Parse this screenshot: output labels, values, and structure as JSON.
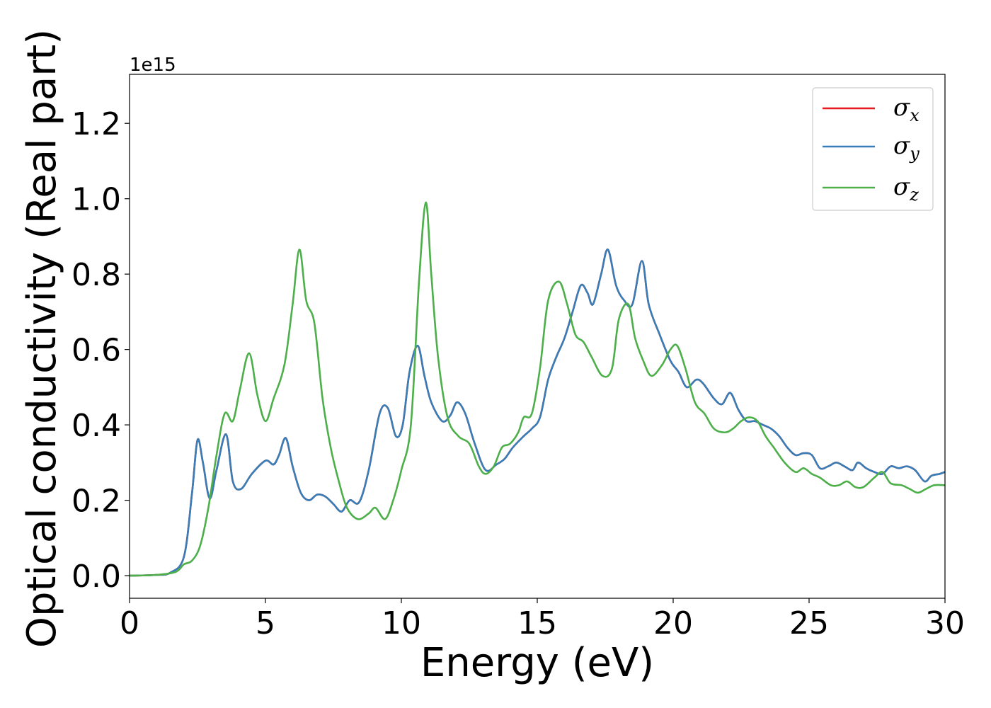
{
  "chart_data": {
    "type": "line",
    "title": "",
    "xlabel": "Energy (eV)",
    "ylabel": "Optical conductivity (Real part)",
    "y_offset_text": "1e15",
    "xlim": [
      0,
      30
    ],
    "ylim": [
      -0.06,
      1.33
    ],
    "xticks": [
      0,
      5,
      10,
      15,
      20,
      25,
      30
    ],
    "xtick_labels": [
      "0",
      "5",
      "10",
      "15",
      "20",
      "25",
      "30"
    ],
    "yticks": [
      0.0,
      0.2,
      0.4,
      0.6,
      0.8,
      1.0,
      1.2
    ],
    "ytick_labels": [
      "0.0",
      "0.2",
      "0.4",
      "0.6",
      "0.8",
      "1.0",
      "1.2"
    ],
    "grid": false,
    "legend_position": "top-right",
    "series": [
      {
        "name": "σx",
        "symbol": "σ",
        "subscript": "x",
        "color": "#e41a1c",
        "x": [
          0,
          1,
          1.5,
          2,
          2.3,
          2.5,
          2.7,
          2.95,
          3.2,
          3.55,
          3.8,
          4.1,
          4.5,
          5.0,
          5.3,
          5.5,
          5.75,
          6.0,
          6.3,
          6.6,
          6.9,
          7.2,
          7.5,
          7.8,
          8.1,
          8.45,
          8.8,
          9.2,
          9.5,
          9.8,
          10.05,
          10.3,
          10.6,
          10.85,
          11.1,
          11.5,
          11.8,
          12.05,
          12.35,
          12.7,
          13.1,
          13.5,
          13.8,
          14.1,
          14.5,
          14.8,
          15.1,
          15.4,
          15.7,
          16.0,
          16.3,
          16.6,
          16.85,
          17.05,
          17.35,
          17.6,
          17.9,
          18.2,
          18.5,
          18.85,
          19.1,
          19.5,
          19.9,
          20.2,
          20.5,
          20.85,
          21.1,
          21.5,
          21.8,
          22.1,
          22.4,
          22.7,
          23.0,
          23.3,
          23.6,
          23.9,
          24.2,
          24.5,
          24.8,
          25.1,
          25.4,
          25.7,
          26.0,
          26.3,
          26.6,
          26.8,
          27.1,
          27.4,
          27.7,
          28.0,
          28.3,
          28.6,
          28.9,
          29.25,
          29.5,
          29.8,
          30
        ],
        "values": [
          0.0,
          0.002,
          0.008,
          0.05,
          0.22,
          0.36,
          0.3,
          0.205,
          0.28,
          0.375,
          0.25,
          0.23,
          0.27,
          0.305,
          0.295,
          0.32,
          0.365,
          0.29,
          0.22,
          0.2,
          0.215,
          0.21,
          0.19,
          0.17,
          0.2,
          0.195,
          0.28,
          0.43,
          0.445,
          0.37,
          0.4,
          0.54,
          0.61,
          0.53,
          0.46,
          0.41,
          0.425,
          0.46,
          0.43,
          0.35,
          0.28,
          0.295,
          0.31,
          0.34,
          0.37,
          0.39,
          0.42,
          0.52,
          0.58,
          0.63,
          0.7,
          0.77,
          0.75,
          0.72,
          0.8,
          0.865,
          0.77,
          0.73,
          0.72,
          0.835,
          0.72,
          0.64,
          0.57,
          0.54,
          0.5,
          0.52,
          0.51,
          0.47,
          0.455,
          0.485,
          0.44,
          0.41,
          0.41,
          0.4,
          0.39,
          0.37,
          0.34,
          0.32,
          0.325,
          0.32,
          0.285,
          0.29,
          0.3,
          0.29,
          0.28,
          0.3,
          0.285,
          0.275,
          0.27,
          0.29,
          0.285,
          0.29,
          0.28,
          0.25,
          0.265,
          0.27,
          0.275
        ]
      },
      {
        "name": "σy",
        "symbol": "σ",
        "subscript": "y",
        "color": "#377eb8",
        "x": [
          0,
          1,
          1.5,
          2,
          2.3,
          2.5,
          2.7,
          2.95,
          3.2,
          3.55,
          3.8,
          4.1,
          4.5,
          5.0,
          5.3,
          5.5,
          5.75,
          6.0,
          6.3,
          6.6,
          6.9,
          7.2,
          7.5,
          7.8,
          8.1,
          8.45,
          8.8,
          9.2,
          9.5,
          9.8,
          10.05,
          10.3,
          10.6,
          10.85,
          11.1,
          11.5,
          11.8,
          12.05,
          12.35,
          12.7,
          13.1,
          13.5,
          13.8,
          14.1,
          14.5,
          14.8,
          15.1,
          15.4,
          15.7,
          16.0,
          16.3,
          16.6,
          16.85,
          17.05,
          17.35,
          17.6,
          17.9,
          18.2,
          18.5,
          18.85,
          19.1,
          19.5,
          19.9,
          20.2,
          20.5,
          20.85,
          21.1,
          21.5,
          21.8,
          22.1,
          22.4,
          22.7,
          23.0,
          23.3,
          23.6,
          23.9,
          24.2,
          24.5,
          24.8,
          25.1,
          25.4,
          25.7,
          26.0,
          26.3,
          26.6,
          26.8,
          27.1,
          27.4,
          27.7,
          28.0,
          28.3,
          28.6,
          28.9,
          29.25,
          29.5,
          29.8,
          30
        ],
        "values": [
          0.0,
          0.002,
          0.008,
          0.05,
          0.22,
          0.36,
          0.3,
          0.205,
          0.28,
          0.375,
          0.25,
          0.23,
          0.27,
          0.305,
          0.295,
          0.32,
          0.365,
          0.29,
          0.22,
          0.2,
          0.215,
          0.21,
          0.19,
          0.17,
          0.2,
          0.195,
          0.28,
          0.43,
          0.445,
          0.37,
          0.4,
          0.54,
          0.61,
          0.53,
          0.46,
          0.41,
          0.425,
          0.46,
          0.43,
          0.35,
          0.28,
          0.295,
          0.31,
          0.34,
          0.37,
          0.39,
          0.42,
          0.52,
          0.58,
          0.63,
          0.7,
          0.77,
          0.75,
          0.72,
          0.8,
          0.865,
          0.77,
          0.73,
          0.72,
          0.835,
          0.72,
          0.64,
          0.57,
          0.54,
          0.5,
          0.52,
          0.51,
          0.47,
          0.455,
          0.485,
          0.44,
          0.41,
          0.41,
          0.4,
          0.39,
          0.37,
          0.34,
          0.32,
          0.325,
          0.32,
          0.285,
          0.29,
          0.3,
          0.29,
          0.28,
          0.3,
          0.285,
          0.275,
          0.27,
          0.29,
          0.285,
          0.29,
          0.28,
          0.25,
          0.265,
          0.27,
          0.275
        ]
      },
      {
        "name": "σz",
        "symbol": "σ",
        "subscript": "z",
        "color": "#4daf4a",
        "x": [
          0,
          1,
          1.7,
          2.0,
          2.3,
          2.6,
          2.9,
          3.2,
          3.5,
          3.8,
          4.05,
          4.4,
          4.7,
          5.0,
          5.3,
          5.7,
          6.0,
          6.25,
          6.5,
          6.8,
          7.1,
          7.4,
          7.7,
          8.0,
          8.4,
          8.8,
          9.05,
          9.4,
          9.7,
          10.0,
          10.35,
          10.65,
          10.9,
          11.1,
          11.35,
          11.7,
          12.1,
          12.5,
          12.85,
          13.1,
          13.4,
          13.7,
          14.0,
          14.3,
          14.5,
          14.8,
          15.1,
          15.4,
          15.8,
          16.1,
          16.4,
          16.7,
          17.0,
          17.4,
          17.75,
          18.0,
          18.35,
          18.6,
          18.9,
          19.2,
          19.6,
          19.9,
          20.15,
          20.45,
          20.8,
          21.15,
          21.5,
          21.9,
          22.2,
          22.5,
          22.8,
          23.1,
          23.4,
          23.7,
          24.1,
          24.5,
          24.8,
          25.1,
          25.4,
          25.8,
          26.1,
          26.4,
          26.7,
          27.0,
          27.4,
          27.7,
          28.0,
          28.4,
          28.7,
          29.0,
          29.3,
          29.6,
          30
        ],
        "values": [
          0.0,
          0.002,
          0.01,
          0.03,
          0.04,
          0.08,
          0.18,
          0.32,
          0.43,
          0.41,
          0.49,
          0.59,
          0.48,
          0.41,
          0.47,
          0.56,
          0.72,
          0.865,
          0.73,
          0.67,
          0.47,
          0.34,
          0.25,
          0.18,
          0.15,
          0.165,
          0.18,
          0.15,
          0.2,
          0.28,
          0.4,
          0.78,
          0.99,
          0.8,
          0.58,
          0.42,
          0.37,
          0.35,
          0.29,
          0.27,
          0.29,
          0.34,
          0.35,
          0.38,
          0.42,
          0.43,
          0.55,
          0.73,
          0.78,
          0.72,
          0.64,
          0.62,
          0.58,
          0.53,
          0.55,
          0.68,
          0.72,
          0.63,
          0.57,
          0.53,
          0.56,
          0.6,
          0.61,
          0.55,
          0.46,
          0.43,
          0.39,
          0.38,
          0.39,
          0.41,
          0.42,
          0.41,
          0.37,
          0.34,
          0.3,
          0.275,
          0.285,
          0.27,
          0.26,
          0.24,
          0.24,
          0.25,
          0.235,
          0.235,
          0.26,
          0.275,
          0.245,
          0.24,
          0.23,
          0.22,
          0.23,
          0.24,
          0.24
        ]
      }
    ]
  }
}
